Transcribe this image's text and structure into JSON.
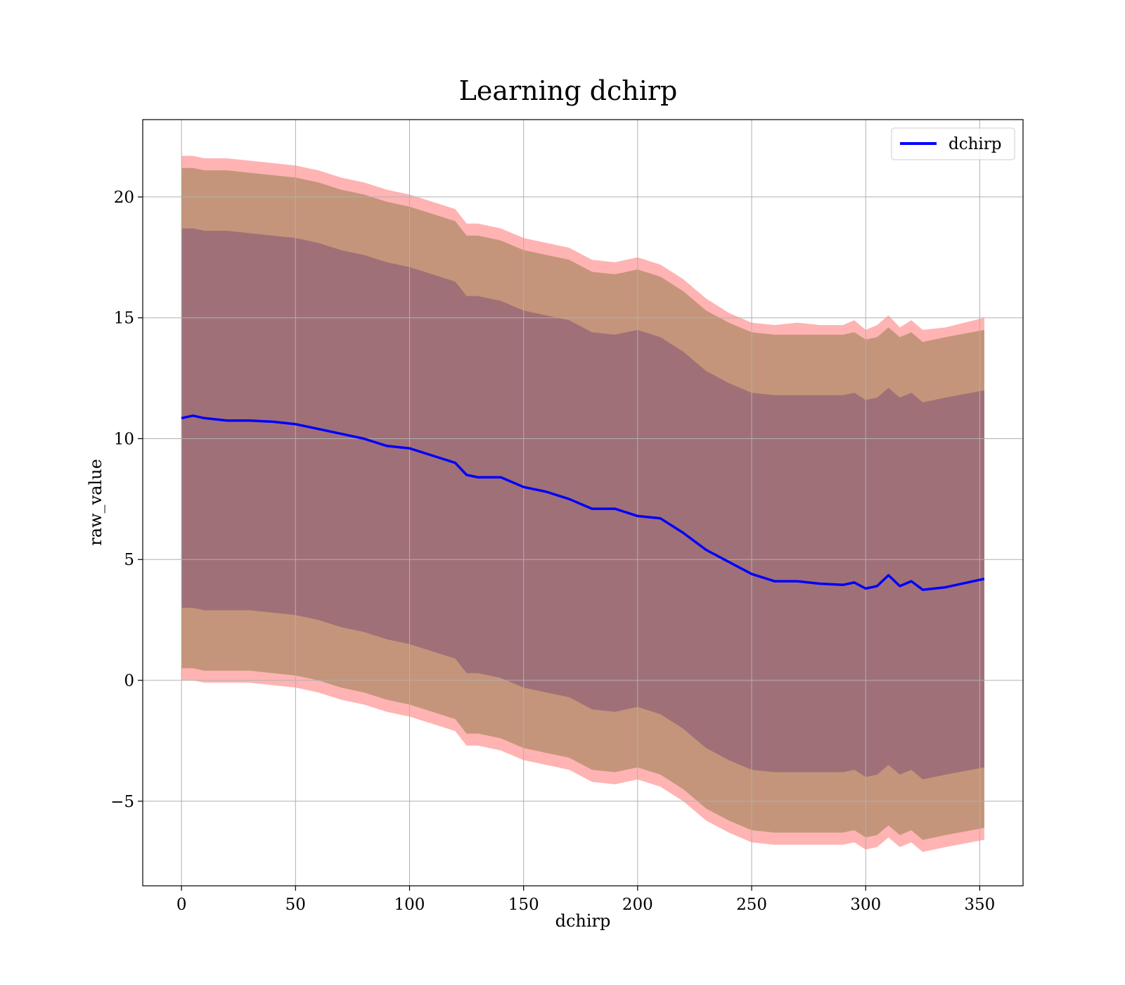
{
  "chart_data": {
    "type": "line",
    "title": "Learning dchirp",
    "xlabel": "dchirp",
    "ylabel": "raw_value",
    "xlim": [
      -17,
      369
    ],
    "ylim": [
      -8.5,
      23.2
    ],
    "xticks": [
      0,
      50,
      100,
      150,
      200,
      250,
      300,
      350
    ],
    "yticks": [
      -5,
      0,
      5,
      10,
      15,
      20
    ],
    "xtick_labels": [
      "0",
      "50",
      "100",
      "150",
      "200",
      "250",
      "300",
      "350"
    ],
    "ytick_labels": [
      "−5",
      "0",
      "5",
      "10",
      "15",
      "20"
    ],
    "grid": true,
    "legend": {
      "placement": "top-right",
      "entries": [
        "dchirp"
      ]
    },
    "colors": {
      "line": "#0000ff",
      "band_outer": "#ff9a9a",
      "band_middle": "#c4957a",
      "band_inner": "#a07078",
      "grid": "#b0b0b0"
    },
    "series": [
      {
        "name": "dchirp",
        "x": [
          0,
          5,
          10,
          15,
          20,
          30,
          40,
          50,
          60,
          70,
          80,
          90,
          100,
          110,
          120,
          125,
          130,
          140,
          150,
          160,
          170,
          180,
          190,
          200,
          210,
          220,
          230,
          240,
          250,
          260,
          270,
          280,
          290,
          295,
          300,
          305,
          310,
          315,
          320,
          325,
          335,
          352
        ],
        "values": [
          10.85,
          10.95,
          10.85,
          10.8,
          10.75,
          10.75,
          10.7,
          10.6,
          10.4,
          10.2,
          10.0,
          9.7,
          9.6,
          9.3,
          9.0,
          8.5,
          8.4,
          8.4,
          8.0,
          7.8,
          7.5,
          7.1,
          7.1,
          6.8,
          6.7,
          6.1,
          5.4,
          4.9,
          4.4,
          4.1,
          4.1,
          4.0,
          3.95,
          4.05,
          3.8,
          3.9,
          4.35,
          3.9,
          4.1,
          3.75,
          3.85,
          4.2
        ],
        "band_outer_upper": [
          21.7,
          21.7,
          21.6,
          21.6,
          21.6,
          21.5,
          21.4,
          21.3,
          21.1,
          20.8,
          20.6,
          20.3,
          20.1,
          19.8,
          19.5,
          18.9,
          18.9,
          18.7,
          18.3,
          18.1,
          17.9,
          17.4,
          17.3,
          17.5,
          17.2,
          16.6,
          15.8,
          15.2,
          14.8,
          14.7,
          14.8,
          14.7,
          14.7,
          14.9,
          14.5,
          14.7,
          15.1,
          14.6,
          14.9,
          14.5,
          14.6,
          15.0
        ],
        "band_middle_upper": [
          21.2,
          21.2,
          21.1,
          21.1,
          21.1,
          21.0,
          20.9,
          20.8,
          20.6,
          20.3,
          20.1,
          19.8,
          19.6,
          19.3,
          19.0,
          18.4,
          18.4,
          18.2,
          17.8,
          17.6,
          17.4,
          16.9,
          16.8,
          17.0,
          16.7,
          16.1,
          15.3,
          14.8,
          14.4,
          14.3,
          14.3,
          14.3,
          14.3,
          14.4,
          14.1,
          14.2,
          14.6,
          14.2,
          14.4,
          14.0,
          14.2,
          14.5
        ],
        "band_inner_upper": [
          18.7,
          18.7,
          18.6,
          18.6,
          18.6,
          18.5,
          18.4,
          18.3,
          18.1,
          17.8,
          17.6,
          17.3,
          17.1,
          16.8,
          16.5,
          15.9,
          15.9,
          15.7,
          15.3,
          15.1,
          14.9,
          14.4,
          14.3,
          14.5,
          14.2,
          13.6,
          12.8,
          12.3,
          11.9,
          11.8,
          11.8,
          11.8,
          11.8,
          11.9,
          11.6,
          11.7,
          12.1,
          11.7,
          11.9,
          11.5,
          11.7,
          12.0
        ],
        "band_inner_lower": [
          3.0,
          3.0,
          2.9,
          2.9,
          2.9,
          2.9,
          2.8,
          2.7,
          2.5,
          2.2,
          2.0,
          1.7,
          1.5,
          1.2,
          0.9,
          0.3,
          0.3,
          0.1,
          -0.3,
          -0.5,
          -0.7,
          -1.2,
          -1.3,
          -1.1,
          -1.4,
          -2.0,
          -2.8,
          -3.3,
          -3.7,
          -3.8,
          -3.8,
          -3.8,
          -3.8,
          -3.7,
          -4.0,
          -3.9,
          -3.5,
          -3.9,
          -3.7,
          -4.1,
          -3.9,
          -3.6
        ],
        "band_middle_lower": [
          0.5,
          0.5,
          0.4,
          0.4,
          0.4,
          0.4,
          0.3,
          0.2,
          0.0,
          -0.3,
          -0.5,
          -0.8,
          -1.0,
          -1.3,
          -1.6,
          -2.2,
          -2.2,
          -2.4,
          -2.8,
          -3.0,
          -3.2,
          -3.7,
          -3.8,
          -3.6,
          -3.9,
          -4.5,
          -5.3,
          -5.8,
          -6.2,
          -6.3,
          -6.3,
          -6.3,
          -6.3,
          -6.2,
          -6.5,
          -6.4,
          -6.0,
          -6.4,
          -6.2,
          -6.6,
          -6.4,
          -6.1
        ],
        "band_outer_lower": [
          0.0,
          0.0,
          -0.1,
          -0.1,
          -0.1,
          -0.1,
          -0.2,
          -0.3,
          -0.5,
          -0.8,
          -1.0,
          -1.3,
          -1.5,
          -1.8,
          -2.1,
          -2.7,
          -2.7,
          -2.9,
          -3.3,
          -3.5,
          -3.7,
          -4.2,
          -4.3,
          -4.1,
          -4.4,
          -5.0,
          -5.8,
          -6.3,
          -6.7,
          -6.8,
          -6.8,
          -6.8,
          -6.8,
          -6.7,
          -7.0,
          -6.9,
          -6.5,
          -6.9,
          -6.7,
          -7.1,
          -6.9,
          -6.6
        ]
      }
    ]
  }
}
